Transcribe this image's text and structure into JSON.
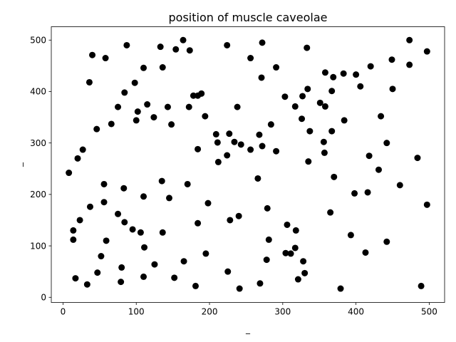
{
  "chart_data": {
    "type": "scatter",
    "title": "position of muscle caveolae",
    "xlabel": "_",
    "ylabel": "_",
    "xlim": [
      -16,
      521
    ],
    "ylim": [
      -10,
      526
    ],
    "xticks": [
      0,
      100,
      200,
      300,
      400,
      500
    ],
    "yticks": [
      0,
      100,
      200,
      300,
      400,
      500
    ],
    "grid": false,
    "marker_color": "#000000",
    "points": [
      {
        "x": 8,
        "y": 242
      },
      {
        "x": 14,
        "y": 130
      },
      {
        "x": 14,
        "y": 112
      },
      {
        "x": 17,
        "y": 37
      },
      {
        "x": 20,
        "y": 270
      },
      {
        "x": 23,
        "y": 150
      },
      {
        "x": 27,
        "y": 287
      },
      {
        "x": 33,
        "y": 25
      },
      {
        "x": 36,
        "y": 418
      },
      {
        "x": 37,
        "y": 176
      },
      {
        "x": 40,
        "y": 471
      },
      {
        "x": 46,
        "y": 327
      },
      {
        "x": 47,
        "y": 48
      },
      {
        "x": 52,
        "y": 80
      },
      {
        "x": 56,
        "y": 220
      },
      {
        "x": 56,
        "y": 185
      },
      {
        "x": 58,
        "y": 465
      },
      {
        "x": 59,
        "y": 110
      },
      {
        "x": 66,
        "y": 337
      },
      {
        "x": 75,
        "y": 370
      },
      {
        "x": 75,
        "y": 162
      },
      {
        "x": 79,
        "y": 30
      },
      {
        "x": 80,
        "y": 58
      },
      {
        "x": 83,
        "y": 212
      },
      {
        "x": 84,
        "y": 146
      },
      {
        "x": 84,
        "y": 398
      },
      {
        "x": 87,
        "y": 490
      },
      {
        "x": 95,
        "y": 132
      },
      {
        "x": 98,
        "y": 417
      },
      {
        "x": 100,
        "y": 344
      },
      {
        "x": 102,
        "y": 361
      },
      {
        "x": 106,
        "y": 126
      },
      {
        "x": 110,
        "y": 446
      },
      {
        "x": 110,
        "y": 196
      },
      {
        "x": 111,
        "y": 97
      },
      {
        "x": 110,
        "y": 40
      },
      {
        "x": 115,
        "y": 375
      },
      {
        "x": 124,
        "y": 350
      },
      {
        "x": 125,
        "y": 64
      },
      {
        "x": 133,
        "y": 487
      },
      {
        "x": 135,
        "y": 226
      },
      {
        "x": 136,
        "y": 447
      },
      {
        "x": 136,
        "y": 126
      },
      {
        "x": 143,
        "y": 370
      },
      {
        "x": 145,
        "y": 193
      },
      {
        "x": 148,
        "y": 336
      },
      {
        "x": 152,
        "y": 38
      },
      {
        "x": 154,
        "y": 482
      },
      {
        "x": 164,
        "y": 500
      },
      {
        "x": 165,
        "y": 70
      },
      {
        "x": 170,
        "y": 220
      },
      {
        "x": 172,
        "y": 370
      },
      {
        "x": 173,
        "y": 480
      },
      {
        "x": 178,
        "y": 392
      },
      {
        "x": 181,
        "y": 22
      },
      {
        "x": 184,
        "y": 392
      },
      {
        "x": 184,
        "y": 288
      },
      {
        "x": 184,
        "y": 144
      },
      {
        "x": 189,
        "y": 396
      },
      {
        "x": 194,
        "y": 352
      },
      {
        "x": 195,
        "y": 85
      },
      {
        "x": 198,
        "y": 183
      },
      {
        "x": 209,
        "y": 317
      },
      {
        "x": 211,
        "y": 301
      },
      {
        "x": 212,
        "y": 263
      },
      {
        "x": 224,
        "y": 490
      },
      {
        "x": 224,
        "y": 276
      },
      {
        "x": 225,
        "y": 50
      },
      {
        "x": 227,
        "y": 318
      },
      {
        "x": 228,
        "y": 150
      },
      {
        "x": 234,
        "y": 302
      },
      {
        "x": 238,
        "y": 370
      },
      {
        "x": 240,
        "y": 158
      },
      {
        "x": 241,
        "y": 17
      },
      {
        "x": 243,
        "y": 297
      },
      {
        "x": 256,
        "y": 465
      },
      {
        "x": 256,
        "y": 287
      },
      {
        "x": 266,
        "y": 231
      },
      {
        "x": 268,
        "y": 316
      },
      {
        "x": 269,
        "y": 27
      },
      {
        "x": 271,
        "y": 427
      },
      {
        "x": 272,
        "y": 495
      },
      {
        "x": 272,
        "y": 294
      },
      {
        "x": 278,
        "y": 73
      },
      {
        "x": 279,
        "y": 173
      },
      {
        "x": 281,
        "y": 112
      },
      {
        "x": 284,
        "y": 336
      },
      {
        "x": 291,
        "y": 447
      },
      {
        "x": 291,
        "y": 284
      },
      {
        "x": 303,
        "y": 390
      },
      {
        "x": 304,
        "y": 86
      },
      {
        "x": 306,
        "y": 141
      },
      {
        "x": 311,
        "y": 85
      },
      {
        "x": 317,
        "y": 371
      },
      {
        "x": 317,
        "y": 96
      },
      {
        "x": 318,
        "y": 130
      },
      {
        "x": 321,
        "y": 35
      },
      {
        "x": 326,
        "y": 347
      },
      {
        "x": 327,
        "y": 391
      },
      {
        "x": 328,
        "y": 70
      },
      {
        "x": 330,
        "y": 47
      },
      {
        "x": 333,
        "y": 485
      },
      {
        "x": 334,
        "y": 405
      },
      {
        "x": 335,
        "y": 264
      },
      {
        "x": 337,
        "y": 323
      },
      {
        "x": 351,
        "y": 378
      },
      {
        "x": 356,
        "y": 302
      },
      {
        "x": 357,
        "y": 281
      },
      {
        "x": 358,
        "y": 437
      },
      {
        "x": 358,
        "y": 371
      },
      {
        "x": 365,
        "y": 165
      },
      {
        "x": 367,
        "y": 401
      },
      {
        "x": 367,
        "y": 323
      },
      {
        "x": 369,
        "y": 428
      },
      {
        "x": 370,
        "y": 234
      },
      {
        "x": 379,
        "y": 17
      },
      {
        "x": 383,
        "y": 435
      },
      {
        "x": 384,
        "y": 344
      },
      {
        "x": 393,
        "y": 121
      },
      {
        "x": 398,
        "y": 202
      },
      {
        "x": 400,
        "y": 433
      },
      {
        "x": 406,
        "y": 410
      },
      {
        "x": 413,
        "y": 87
      },
      {
        "x": 416,
        "y": 204
      },
      {
        "x": 418,
        "y": 275
      },
      {
        "x": 420,
        "y": 449
      },
      {
        "x": 431,
        "y": 248
      },
      {
        "x": 434,
        "y": 352
      },
      {
        "x": 442,
        "y": 108
      },
      {
        "x": 442,
        "y": 300
      },
      {
        "x": 449,
        "y": 462
      },
      {
        "x": 450,
        "y": 405
      },
      {
        "x": 460,
        "y": 218
      },
      {
        "x": 473,
        "y": 500
      },
      {
        "x": 473,
        "y": 452
      },
      {
        "x": 484,
        "y": 271
      },
      {
        "x": 489,
        "y": 22
      },
      {
        "x": 497,
        "y": 478
      },
      {
        "x": 497,
        "y": 180
      }
    ]
  }
}
